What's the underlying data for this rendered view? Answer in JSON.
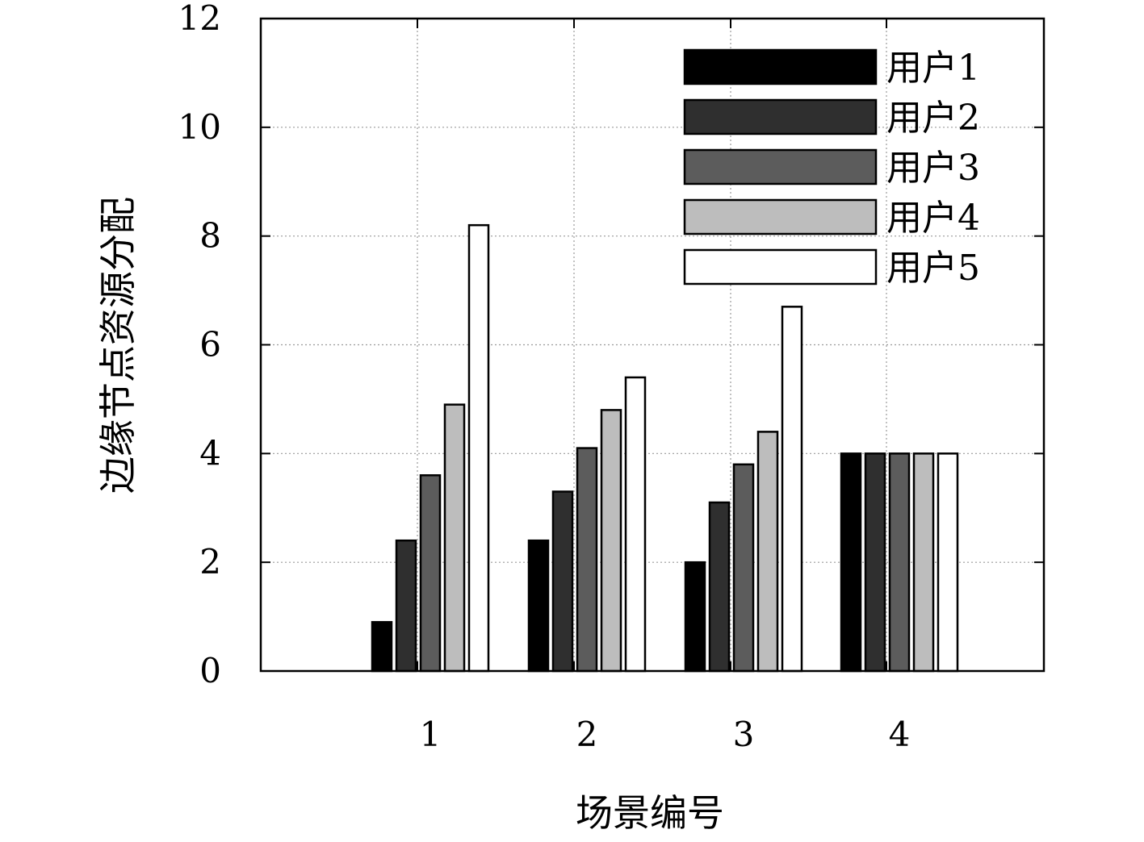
{
  "chart_data": {
    "type": "bar",
    "title": "",
    "xlabel": "场景编号",
    "ylabel": "边缘节点资源分配",
    "categories": [
      "1",
      "2",
      "3",
      "4"
    ],
    "ylim": [
      0,
      12
    ],
    "yticks": [
      0,
      2,
      4,
      6,
      8,
      10,
      12
    ],
    "grid": true,
    "legend_position": "top-right",
    "series": [
      {
        "name": "用户1",
        "color": "#000000",
        "values": [
          0.9,
          2.4,
          2.0,
          4.0
        ]
      },
      {
        "name": "用户2",
        "color": "#2f2f2f",
        "values": [
          2.4,
          3.3,
          3.1,
          4.0
        ]
      },
      {
        "name": "用户3",
        "color": "#5c5c5c",
        "values": [
          3.6,
          4.1,
          3.8,
          4.0
        ]
      },
      {
        "name": "用户4",
        "color": "#bdbdbd",
        "values": [
          4.9,
          4.8,
          4.4,
          4.0
        ]
      },
      {
        "name": "用户5",
        "color": "#ffffff",
        "values": [
          8.2,
          5.4,
          6.7,
          4.0
        ]
      }
    ]
  }
}
